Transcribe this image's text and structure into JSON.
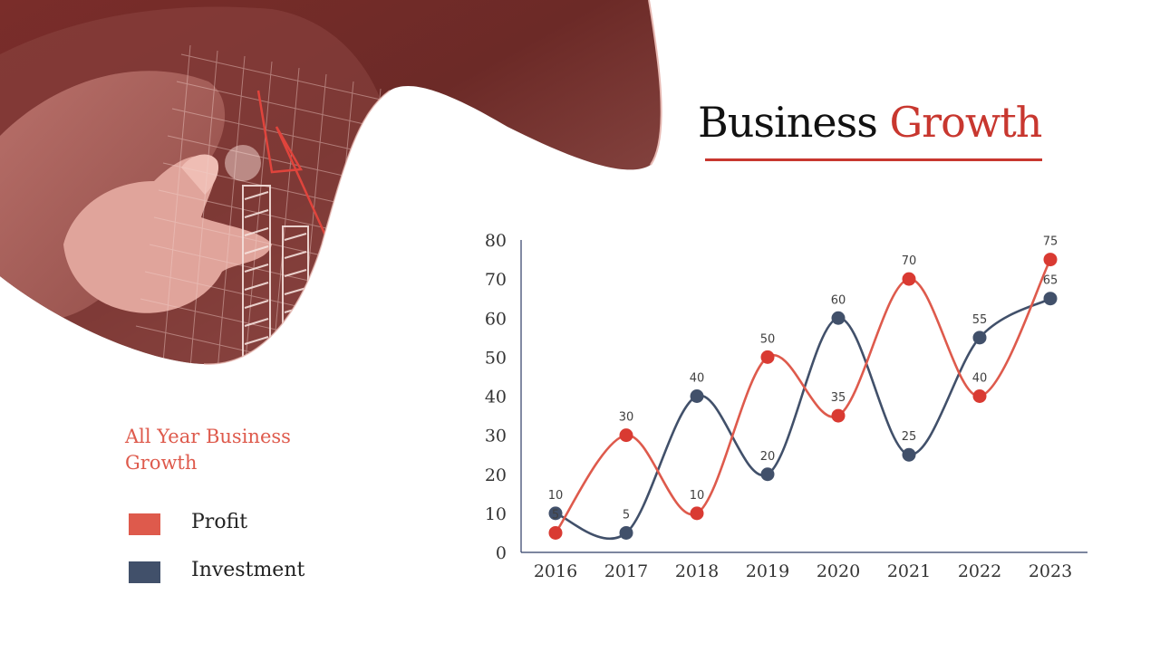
{
  "slide": {
    "title_part1": "Business",
    "title_part2": "Growth",
    "legend_heading": "All Year Business Growth"
  },
  "colors": {
    "profit": "#de5a4c",
    "profit_marker": "#d93a32",
    "investment": "#41506a",
    "accent": "#c8372f"
  },
  "chart_data": {
    "type": "line",
    "smooth": true,
    "categories": [
      "2016",
      "2017",
      "2018",
      "2019",
      "2020",
      "2021",
      "2022",
      "2023"
    ],
    "series": [
      {
        "name": "Profit",
        "values": [
          5,
          30,
          10,
          50,
          35,
          70,
          40,
          75
        ]
      },
      {
        "name": "Investment",
        "values": [
          10,
          5,
          40,
          20,
          60,
          25,
          55,
          65
        ]
      }
    ],
    "ylim": [
      0,
      80
    ],
    "yticks": [
      0,
      10,
      20,
      30,
      40,
      50,
      60,
      70,
      80
    ],
    "grid": false,
    "data_labels": true,
    "legend_position": "left"
  },
  "legend": [
    {
      "label": "Profit",
      "color": "#de5a4c"
    },
    {
      "label": "Investment",
      "color": "#41506a"
    }
  ]
}
